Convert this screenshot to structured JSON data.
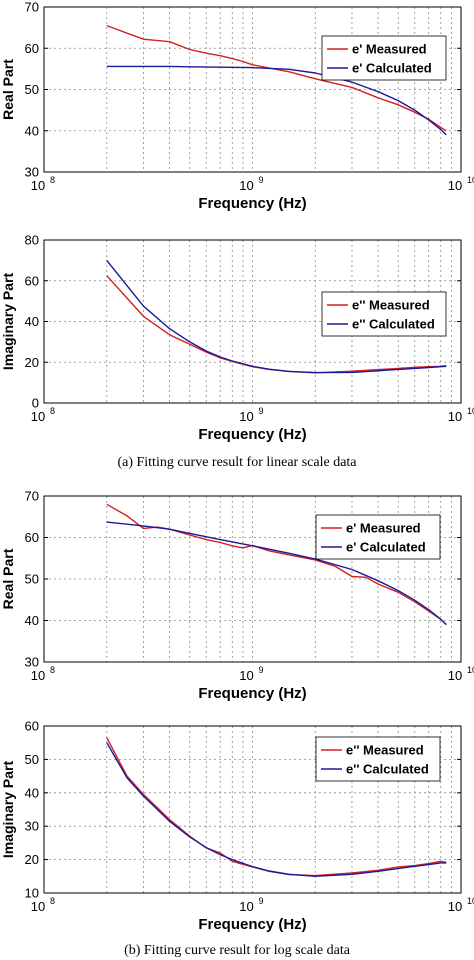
{
  "colors": {
    "measured": "#d42020",
    "calculated": "#1a1a99",
    "grid": "#8a8a8a"
  },
  "captions": {
    "a": "(a) Fitting curve result for linear scale data",
    "b": "(b) Fitting curve result for log scale data"
  },
  "chart_data": [
    {
      "type": "line",
      "xlabel": "Frequency (Hz)",
      "ylabel": "Real Part",
      "x_scale": "log",
      "xlim": [
        100000000,
        10000000000
      ],
      "ylim": [
        30,
        70
      ],
      "yticks": [
        "30",
        "40",
        "50",
        "60",
        "70"
      ],
      "xticks": [
        {
          "base": "10",
          "exp": "8"
        },
        {
          "base": "10",
          "exp": "9"
        },
        {
          "base": "10",
          "exp": "10"
        }
      ],
      "grid": true,
      "legend_position": "top-right",
      "series": [
        {
          "name": "e' Measured",
          "color": "#d42020",
          "x": [
            200000000,
            300000000,
            400000000,
            500000000,
            600000000,
            700000000,
            800000000,
            900000000,
            1000000000,
            1200000000,
            1500000000,
            2000000000,
            3000000000,
            4000000000,
            5000000000,
            6000000000,
            7000000000,
            8000000000,
            8500000000
          ],
          "y": [
            65.5,
            62.2,
            61.6,
            59.7,
            58.8,
            58.2,
            57.5,
            56.8,
            56.0,
            55.2,
            54.3,
            52.6,
            50.5,
            48.0,
            46.3,
            44.5,
            42.8,
            40.8,
            40.0
          ]
        },
        {
          "name": "e' Calculated",
          "color": "#1a1a99",
          "x": [
            200000000,
            300000000,
            400000000,
            500000000,
            700000000,
            1000000000,
            1500000000,
            2000000000,
            3000000000,
            4000000000,
            5000000000,
            6000000000,
            7000000000,
            8000000000,
            8500000000
          ],
          "y": [
            55.6,
            55.6,
            55.6,
            55.5,
            55.4,
            55.3,
            54.9,
            54.0,
            51.8,
            49.5,
            47.3,
            45.0,
            42.6,
            40.3,
            39.0
          ]
        }
      ]
    },
    {
      "type": "line",
      "xlabel": "Frequency (Hz)",
      "ylabel": "Imaginary Part",
      "x_scale": "log",
      "xlim": [
        100000000,
        10000000000
      ],
      "ylim": [
        0,
        80
      ],
      "yticks": [
        "0",
        "20",
        "40",
        "60",
        "80"
      ],
      "xticks": [
        {
          "base": "10",
          "exp": "8"
        },
        {
          "base": "10",
          "exp": "9"
        },
        {
          "base": "10",
          "exp": "10"
        }
      ],
      "grid": true,
      "legend_position": "right",
      "series": [
        {
          "name": "e'' Measured",
          "color": "#d42020",
          "x": [
            200000000,
            300000000,
            400000000,
            500000000,
            600000000,
            700000000,
            800000000,
            1000000000,
            1200000000,
            1500000000,
            2000000000,
            3000000000,
            4000000000,
            5000000000,
            6000000000,
            7000000000,
            8000000000,
            8500000000
          ],
          "y": [
            62.5,
            42.5,
            33.5,
            28.8,
            25.0,
            22.2,
            20.4,
            17.8,
            16.5,
            15.5,
            14.8,
            15.6,
            16.4,
            17.0,
            17.5,
            17.8,
            18.0,
            18.3
          ]
        },
        {
          "name": "e'' Calculated",
          "color": "#1a1a99",
          "x": [
            200000000,
            300000000,
            400000000,
            500000000,
            600000000,
            700000000,
            800000000,
            1000000000,
            1200000000,
            1500000000,
            2000000000,
            3000000000,
            4000000000,
            5000000000,
            6000000000,
            7000000000,
            8000000000,
            8500000000
          ],
          "y": [
            70.0,
            47.5,
            36.5,
            30.0,
            25.5,
            22.6,
            20.6,
            18.0,
            16.6,
            15.5,
            14.9,
            15.0,
            15.8,
            16.5,
            17.0,
            17.4,
            17.8,
            18.0
          ]
        }
      ]
    },
    {
      "type": "line",
      "xlabel": "Frequency (Hz)",
      "ylabel": "Real Part",
      "x_scale": "log",
      "xlim": [
        100000000,
        10000000000
      ],
      "ylim": [
        30,
        70
      ],
      "yticks": [
        "30",
        "40",
        "50",
        "60",
        "70"
      ],
      "xticks": [
        {
          "base": "10",
          "exp": "8"
        },
        {
          "base": "10",
          "exp": "9"
        },
        {
          "base": "10",
          "exp": "10"
        }
      ],
      "grid": true,
      "legend_position": "top-right",
      "series": [
        {
          "name": "e' Measured",
          "color": "#d42020",
          "x": [
            200000000,
            250000000,
            300000000,
            350000000,
            400000000,
            500000000,
            600000000,
            700000000,
            800000000,
            900000000,
            1000000000,
            1200000000,
            1500000000,
            2000000000,
            2500000000,
            3000000000,
            3500000000,
            4000000000,
            5000000000,
            6000000000,
            7000000000,
            8000000000,
            8500000000
          ],
          "y": [
            68.0,
            65.2,
            62.2,
            62.5,
            62.0,
            60.6,
            59.5,
            58.8,
            58.0,
            57.5,
            58.1,
            56.8,
            55.8,
            54.6,
            53.0,
            50.6,
            50.4,
            48.8,
            46.8,
            44.5,
            42.3,
            40.3,
            39.0
          ]
        },
        {
          "name": "e' Calculated",
          "color": "#1a1a99",
          "x": [
            200000000,
            300000000,
            400000000,
            500000000,
            700000000,
            1000000000,
            1500000000,
            2000000000,
            3000000000,
            4000000000,
            5000000000,
            6000000000,
            7000000000,
            8000000000,
            8500000000
          ],
          "y": [
            63.7,
            62.8,
            62.0,
            61.0,
            59.5,
            58.0,
            56.2,
            54.8,
            52.3,
            49.6,
            47.2,
            44.9,
            42.6,
            40.3,
            39.0
          ]
        }
      ]
    },
    {
      "type": "line",
      "xlabel": "Frequency (Hz)",
      "ylabel": "Imaginary Part",
      "x_scale": "log",
      "xlim": [
        100000000,
        10000000000
      ],
      "ylim": [
        10,
        60
      ],
      "yticks": [
        "10",
        "20",
        "30",
        "40",
        "50",
        "60"
      ],
      "xticks": [
        {
          "base": "10",
          "exp": "8"
        },
        {
          "base": "10",
          "exp": "9"
        },
        {
          "base": "10",
          "exp": "10"
        }
      ],
      "grid": true,
      "legend_position": "top-right",
      "series": [
        {
          "name": "e'' Measured",
          "color": "#d42020",
          "x": [
            200000000,
            250000000,
            300000000,
            350000000,
            400000000,
            500000000,
            600000000,
            700000000,
            800000000,
            1000000000,
            1200000000,
            1500000000,
            2000000000,
            3000000000,
            4000000000,
            5000000000,
            6000000000,
            7000000000,
            8000000000,
            8500000000
          ],
          "y": [
            56.5,
            45.0,
            39.5,
            35.5,
            32.0,
            27.0,
            23.5,
            22.0,
            19.5,
            17.8,
            16.5,
            15.5,
            15.2,
            16.0,
            16.8,
            17.8,
            18.2,
            18.8,
            19.5,
            19.2
          ]
        },
        {
          "name": "e'' Calculated",
          "color": "#1a1a99",
          "x": [
            200000000,
            250000000,
            300000000,
            350000000,
            400000000,
            500000000,
            600000000,
            700000000,
            800000000,
            1000000000,
            1200000000,
            1500000000,
            2000000000,
            3000000000,
            4000000000,
            5000000000,
            6000000000,
            7000000000,
            8000000000,
            8500000000
          ],
          "y": [
            55.0,
            44.5,
            39.0,
            35.0,
            31.5,
            26.8,
            23.6,
            21.5,
            20.0,
            17.9,
            16.6,
            15.6,
            15.0,
            15.6,
            16.5,
            17.3,
            18.0,
            18.5,
            19.0,
            19.0
          ]
        }
      ]
    }
  ]
}
